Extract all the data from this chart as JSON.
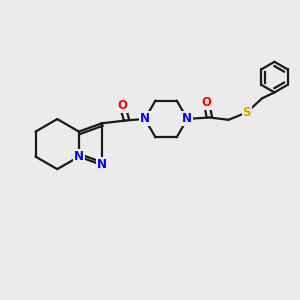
{
  "bg_color": "#ebebeb",
  "bond_color": "#1a1a1a",
  "n_color": "#0000ff",
  "o_color": "#ff0000",
  "s_color": "#ccaa00",
  "font_size": 8.5,
  "line_width": 1.6,
  "xlim": [
    0,
    10
  ],
  "ylim": [
    0,
    10
  ]
}
